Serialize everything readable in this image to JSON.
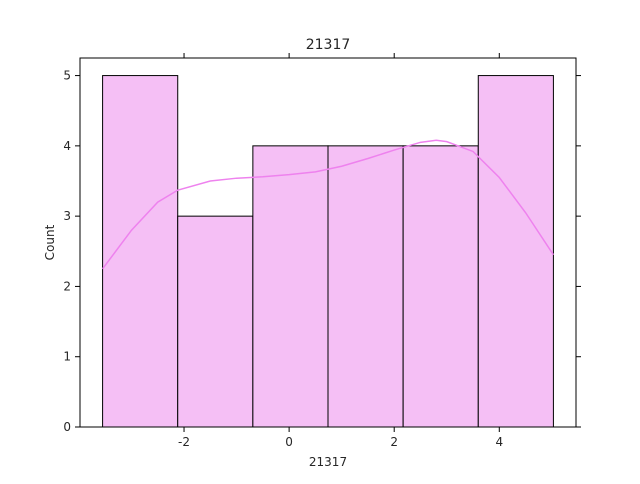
{
  "chart_data": {
    "type": "bar",
    "title": "21317",
    "xlabel": "21317",
    "ylabel": "Count",
    "bins": [
      {
        "x0": -3.55,
        "x1": -2.12,
        "count": 5
      },
      {
        "x0": -2.12,
        "x1": -0.69,
        "count": 3
      },
      {
        "x0": -0.69,
        "x1": 0.74,
        "count": 4
      },
      {
        "x0": 0.74,
        "x1": 2.17,
        "count": 4
      },
      {
        "x0": 2.17,
        "x1": 3.6,
        "count": 4
      },
      {
        "x0": 3.6,
        "x1": 5.03,
        "count": 5
      }
    ],
    "kde": {
      "x": [
        -3.55,
        -3.0,
        -2.5,
        -2.12,
        -1.5,
        -1.0,
        -0.5,
        0.0,
        0.5,
        1.0,
        1.5,
        2.0,
        2.5,
        2.8,
        3.0,
        3.5,
        4.0,
        4.5,
        5.03
      ],
      "y": [
        2.25,
        2.8,
        3.2,
        3.37,
        3.5,
        3.54,
        3.56,
        3.59,
        3.63,
        3.71,
        3.82,
        3.94,
        4.05,
        4.08,
        4.06,
        3.92,
        3.55,
        3.05,
        2.45
      ]
    },
    "xlim": [
      -3.98,
      5.46
    ],
    "ylim": [
      0,
      5.25
    ],
    "xticks": [
      -2,
      0,
      2,
      4
    ],
    "yticks": [
      0,
      1,
      2,
      3,
      4,
      5
    ],
    "bar_color": "#f5bff5",
    "edge_color": "#000000",
    "kde_color": "#ee82ee"
  }
}
